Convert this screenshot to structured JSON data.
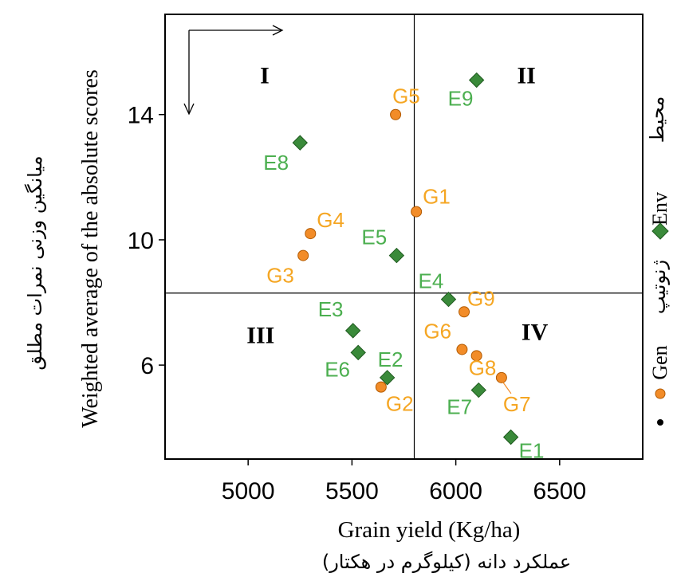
{
  "chart_data": {
    "type": "scatter",
    "xlabel": "Grain yield (Kg/ha)",
    "xlabel_fa": "عملکرد دانه (کیلوگرم در هکتار)",
    "ylabel": "Weighted average of the absolute scores",
    "ylabel_fa": "میانگین وزنی نمرات مطلق",
    "xlim": [
      4600,
      6900
    ],
    "ylim": [
      3.0,
      17.2
    ],
    "xticks": [
      5000,
      5500,
      6000,
      6500
    ],
    "yticks": [
      6,
      10,
      14
    ],
    "grid": false,
    "mean_lines": {
      "x": 5800,
      "y": 8.3
    },
    "quadrants": [
      {
        "label": "I",
        "x": 5080,
        "y": 15.0
      },
      {
        "label": "II",
        "x": 6340,
        "y": 15.0
      },
      {
        "label": "III",
        "x": 5060,
        "y": 6.7
      },
      {
        "label": "IV",
        "x": 6380,
        "y": 6.8
      }
    ],
    "legend": {
      "position": "right",
      "title_fa": "محیط",
      "entries": [
        {
          "label": "Env",
          "label_fa": "ژنوتیپ",
          "marker": "diamond",
          "color": "#3a8a3a"
        },
        {
          "label": "Gen",
          "marker": "circle",
          "color": "#f28c28"
        }
      ]
    },
    "series": [
      {
        "name": "Env",
        "marker": "diamond",
        "color": "#3a8a3a",
        "label_color": "#4caf50",
        "points": [
          {
            "label": "E1",
            "x": 6265,
            "y": 3.7
          },
          {
            "label": "E2",
            "x": 5670,
            "y": 5.6
          },
          {
            "label": "E3",
            "x": 5505,
            "y": 7.1
          },
          {
            "label": "E4",
            "x": 5965,
            "y": 8.1
          },
          {
            "label": "E5",
            "x": 5715,
            "y": 9.5
          },
          {
            "label": "E6",
            "x": 5530,
            "y": 6.4
          },
          {
            "label": "E7",
            "x": 6110,
            "y": 5.2
          },
          {
            "label": "E8",
            "x": 5250,
            "y": 13.1
          },
          {
            "label": "E9",
            "x": 6100,
            "y": 15.1
          }
        ]
      },
      {
        "name": "Gen",
        "marker": "circle",
        "color": "#f28c28",
        "label_color": "#f5a623",
        "points": [
          {
            "label": "G1",
            "x": 5810,
            "y": 10.9
          },
          {
            "label": "G2",
            "x": 5640,
            "y": 5.3
          },
          {
            "label": "G3",
            "x": 5265,
            "y": 9.5
          },
          {
            "label": "G4",
            "x": 5300,
            "y": 10.2
          },
          {
            "label": "G5",
            "x": 5710,
            "y": 14.0
          },
          {
            "label": "G6",
            "x": 6030,
            "y": 6.5
          },
          {
            "label": "G7",
            "x": 6220,
            "y": 5.6
          },
          {
            "label": "G8",
            "x": 6100,
            "y": 6.3
          },
          {
            "label": "G9",
            "x": 6040,
            "y": 7.7
          }
        ]
      }
    ]
  }
}
